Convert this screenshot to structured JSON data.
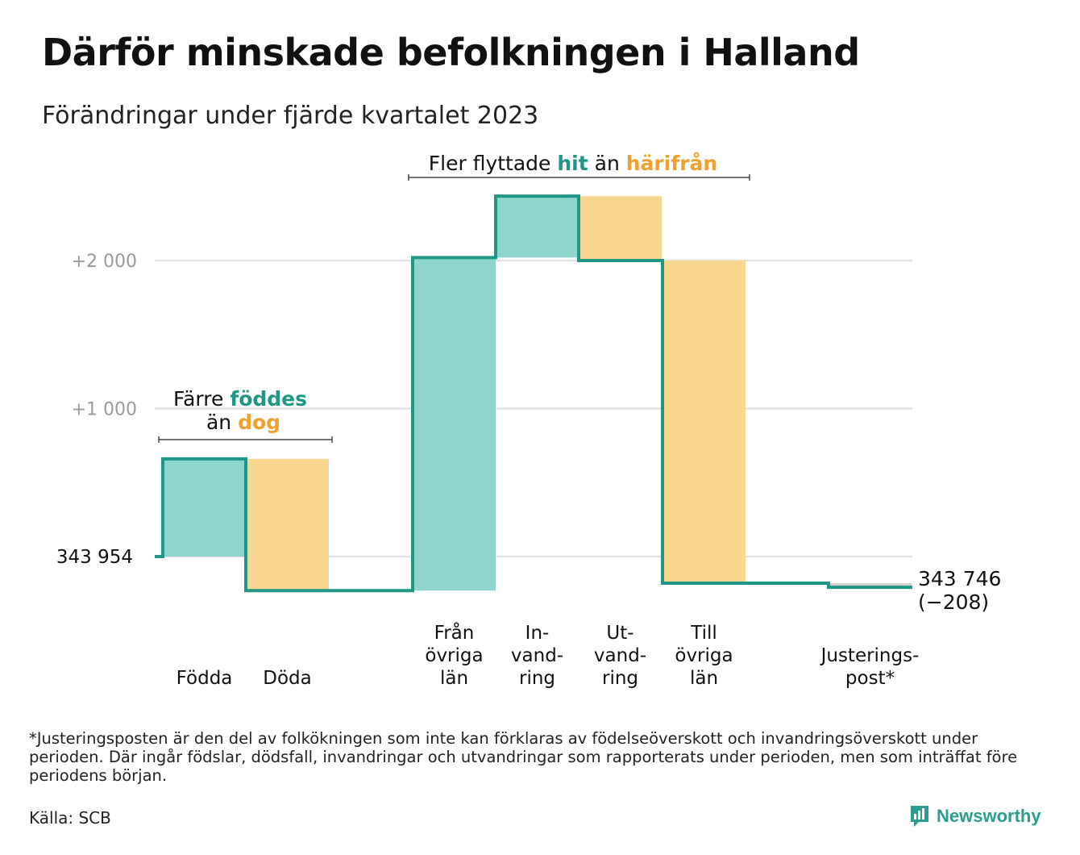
{
  "title": "Därför minskade befolkningen i Halland",
  "subtitle": "Förändringar under fjärde kvartalet 2023",
  "footnote": "*Justeringsposten är den del av folkökningen som inte kan förklaras av födelseöverskott och invandringsöverskott under perioden. Där ingår födslar, dödsfall, invandringar och utvandringar som rapporterats under perioden, men som inträffat före periodens början.",
  "source": "Källa: SCB",
  "brand": "Newsworthy",
  "colors": {
    "increase": "#8dd5cd",
    "decrease": "#f9d68e",
    "line": "#1f9686",
    "teal_text": "#1f9686",
    "orange_text": "#f0a02c",
    "grid": "#e3e3e3",
    "tick": "#9a9a9a"
  },
  "chart_data": {
    "type": "waterfall",
    "title": "Därför minskade befolkningen i Halland",
    "subtitle": "Förändringar under fjärde kvartalet 2023",
    "start_value": 343954,
    "start_label": "343   954",
    "end_value": 343746,
    "end_label": "343 746",
    "end_change_label": "(−208)",
    "y_ticks": [
      {
        "value": 1000,
        "label": "+1   000"
      },
      {
        "value": 2000,
        "label": "+2   000"
      }
    ],
    "ylim": [
      -400,
      2600
    ],
    "steps": [
      {
        "name": "Födda",
        "label": [
          "Födda"
        ],
        "delta": 660,
        "kind": "increase"
      },
      {
        "name": "Döda",
        "label": [
          "Döda"
        ],
        "delta": -890,
        "kind": "decrease"
      },
      {
        "name": "Från övriga län",
        "label": [
          "Från",
          "övriga",
          "län"
        ],
        "delta": 2250,
        "kind": "increase"
      },
      {
        "name": "Invandring",
        "label": [
          "In-",
          "vand-",
          "ring"
        ],
        "delta": 415,
        "kind": "increase"
      },
      {
        "name": "Utvandring",
        "label": [
          "Ut-",
          "vand-",
          "ring"
        ],
        "delta": -435,
        "kind": "decrease"
      },
      {
        "name": "Till övriga län",
        "label": [
          "Till",
          "övriga",
          "län"
        ],
        "delta": -2180,
        "kind": "decrease"
      },
      {
        "name": "Justeringspost",
        "label": [
          "Justerings-",
          "post*"
        ],
        "delta": -28,
        "kind": "adjustment"
      }
    ],
    "annotations": [
      {
        "text_parts": [
          {
            "text": "Färre ",
            "color": "default"
          },
          {
            "text": "föddes",
            "color": "teal"
          },
          {
            "text": "än ",
            "color": "default",
            "newline": true
          },
          {
            "text": "dog",
            "color": "orange"
          }
        ],
        "spans": [
          "Födda",
          "Döda"
        ]
      },
      {
        "text_parts": [
          {
            "text": "Fler flyttade ",
            "color": "default"
          },
          {
            "text": "hit",
            "color": "teal"
          },
          {
            "text": " än ",
            "color": "default"
          },
          {
            "text": "härifrån",
            "color": "orange"
          }
        ],
        "spans": [
          "Från övriga län",
          "Till övriga län"
        ]
      }
    ]
  }
}
